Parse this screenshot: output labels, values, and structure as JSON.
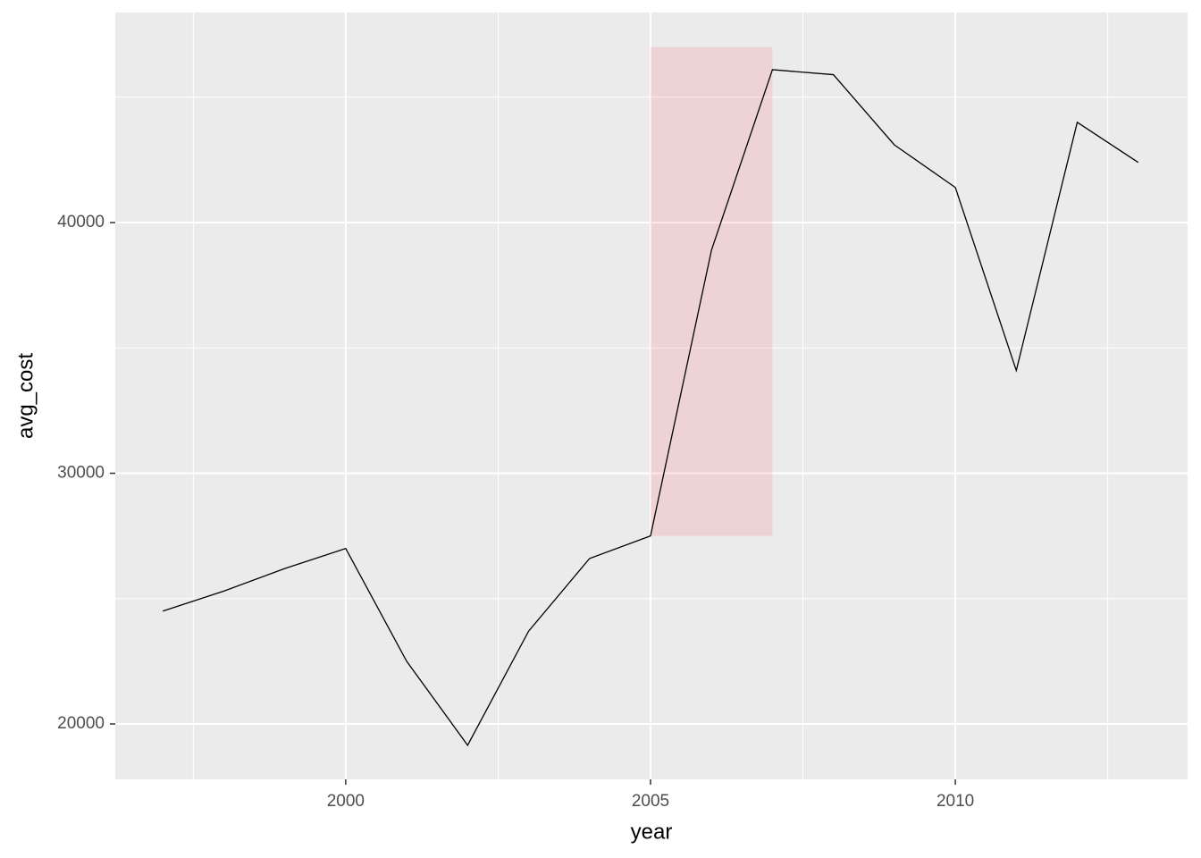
{
  "chart_data": {
    "type": "line",
    "x_label": "year",
    "y_label": "avg_cost",
    "x": [
      1997,
      1998,
      1999,
      2000,
      2001,
      2002,
      2003,
      2004,
      2005,
      2006,
      2007,
      2008,
      2009,
      2010,
      2011,
      2012,
      2013
    ],
    "series": [
      {
        "color": "#000000",
        "values": [
          24500,
          25300,
          26200,
          27000,
          22500,
          19150,
          23700,
          26600,
          27500,
          38900,
          46100,
          45900,
          43100,
          41400,
          34100,
          44000,
          42400
        ]
      }
    ],
    "xlim": [
      1996.22,
      2013.81
    ],
    "ylim": [
      17790,
      48380
    ],
    "xticks": [
      2000,
      2005,
      2010
    ],
    "yticks": [
      20000,
      30000,
      40000
    ],
    "minor_xticks": [
      1997.5,
      2002.5,
      2007.5,
      2012.5
    ],
    "minor_yticks": [
      25000,
      35000,
      45000
    ],
    "grid": true,
    "highlight": {
      "xmin": 2005,
      "xmax": 2007,
      "ymin": 27500,
      "ymax": 47000,
      "color": "#ff0000",
      "alpha": 0.1
    }
  }
}
